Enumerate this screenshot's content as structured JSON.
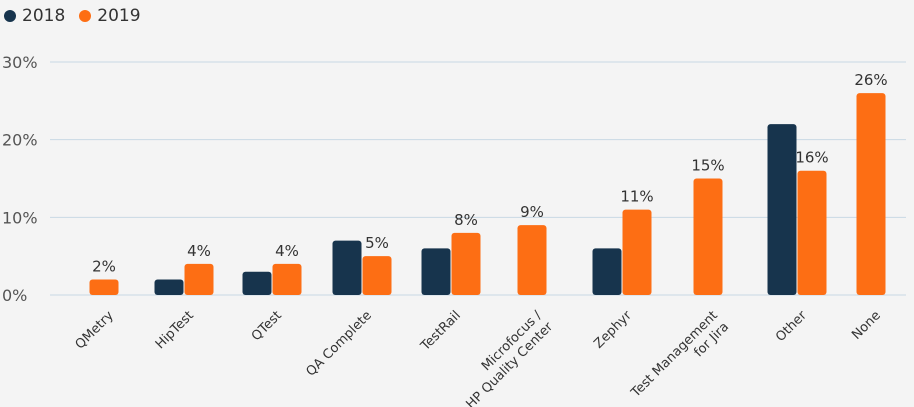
{
  "chart_data": {
    "type": "bar",
    "title": "",
    "xlabel": "",
    "ylabel": "",
    "ylim": [
      0,
      30
    ],
    "yticks": [
      0,
      10,
      20,
      30
    ],
    "ytick_labels": [
      "0%",
      "10%",
      "20%",
      "30%"
    ],
    "grid": true,
    "legend_position": "top-left",
    "categories": [
      [
        "QMetry"
      ],
      [
        "HipTest"
      ],
      [
        "QTest"
      ],
      [
        "QA Complete"
      ],
      [
        "TestRail"
      ],
      [
        "Microfocus /",
        "HP Quality Center"
      ],
      [
        "Zephyr"
      ],
      [
        "Test Management",
        "for Jira"
      ],
      [
        "Other"
      ],
      [
        "None"
      ]
    ],
    "series": [
      {
        "name": "2018",
        "color": "#17344d",
        "values": [
          null,
          2,
          3,
          7,
          6,
          null,
          6,
          null,
          22,
          null
        ],
        "labels": [
          null,
          null,
          null,
          null,
          null,
          null,
          null,
          null,
          null,
          null
        ]
      },
      {
        "name": "2019",
        "color": "#fd6e14",
        "values": [
          2,
          4,
          4,
          5,
          8,
          9,
          11,
          15,
          16,
          26
        ],
        "labels": [
          "2%",
          "4%",
          "4%",
          "5%",
          "8%",
          "9%",
          "11%",
          "15%",
          "16%",
          "26%"
        ]
      }
    ]
  }
}
